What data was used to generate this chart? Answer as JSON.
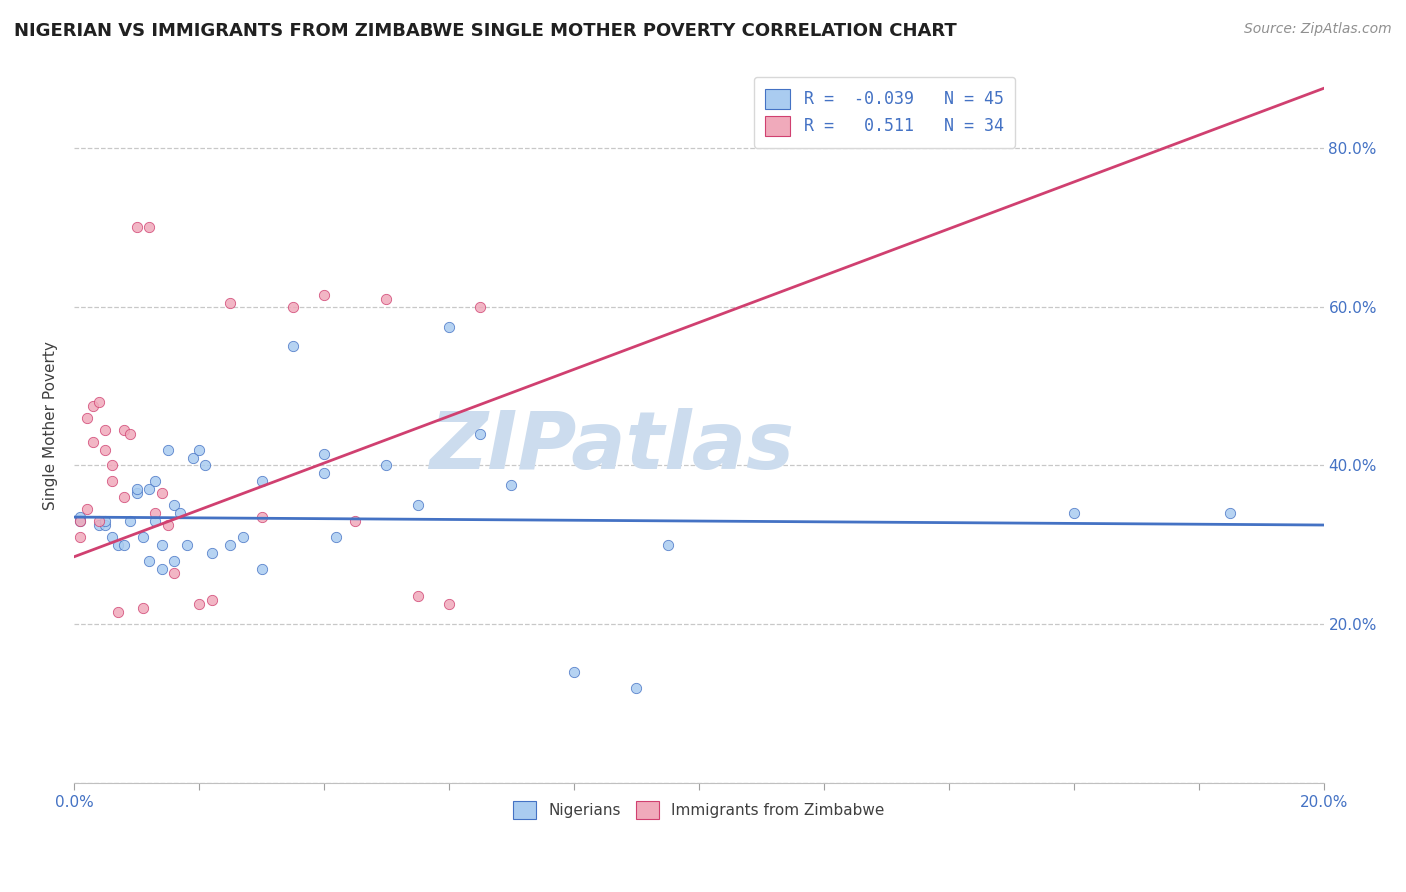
{
  "title": "NIGERIAN VS IMMIGRANTS FROM ZIMBABWE SINGLE MOTHER POVERTY CORRELATION CHART",
  "source": "Source: ZipAtlas.com",
  "xlabel": "",
  "ylabel": "Single Mother Poverty",
  "xlim": [
    0.0,
    0.2
  ],
  "ylim": [
    0.0,
    0.9
  ],
  "xticks": [
    0.0,
    0.02,
    0.04,
    0.06,
    0.08,
    0.1,
    0.12,
    0.14,
    0.16,
    0.18,
    0.2
  ],
  "yticks": [
    0.0,
    0.2,
    0.4,
    0.6,
    0.8
  ],
  "ytick_labels_right": [
    "",
    "20.0%",
    "40.0%",
    "60.0%",
    "80.0%"
  ],
  "xtick_labels": [
    "0.0%",
    "",
    "",
    "",
    "",
    "",
    "",
    "",
    "",
    "",
    "20.0%"
  ],
  "blue_R": -0.039,
  "blue_N": 45,
  "pink_R": 0.511,
  "pink_N": 34,
  "blue_color": "#aaccf0",
  "pink_color": "#f0aabb",
  "blue_line_color": "#4472c4",
  "pink_line_color": "#d04070",
  "legend_text_color": "#4472c4",
  "watermark_text": "ZIPatlas",
  "watermark_color": "#ccdcee",
  "blue_line_x0": 0.0,
  "blue_line_y0": 0.335,
  "blue_line_x1": 0.2,
  "blue_line_y1": 0.325,
  "pink_line_x0": 0.0,
  "pink_line_y0": 0.285,
  "pink_line_x1": 0.2,
  "pink_line_y1": 0.875,
  "blue_dots_x": [
    0.001,
    0.001,
    0.004,
    0.005,
    0.005,
    0.006,
    0.007,
    0.008,
    0.009,
    0.01,
    0.01,
    0.011,
    0.012,
    0.012,
    0.013,
    0.013,
    0.014,
    0.014,
    0.015,
    0.016,
    0.016,
    0.017,
    0.018,
    0.019,
    0.02,
    0.021,
    0.022,
    0.025,
    0.027,
    0.03,
    0.03,
    0.035,
    0.04,
    0.04,
    0.042,
    0.05,
    0.055,
    0.06,
    0.065,
    0.07,
    0.08,
    0.09,
    0.095,
    0.16,
    0.185
  ],
  "blue_dots_y": [
    0.335,
    0.33,
    0.325,
    0.325,
    0.33,
    0.31,
    0.3,
    0.3,
    0.33,
    0.365,
    0.37,
    0.31,
    0.37,
    0.28,
    0.38,
    0.33,
    0.27,
    0.3,
    0.42,
    0.28,
    0.35,
    0.34,
    0.3,
    0.41,
    0.42,
    0.4,
    0.29,
    0.3,
    0.31,
    0.38,
    0.27,
    0.55,
    0.415,
    0.39,
    0.31,
    0.4,
    0.35,
    0.575,
    0.44,
    0.375,
    0.14,
    0.12,
    0.3,
    0.34,
    0.34
  ],
  "pink_dots_x": [
    0.001,
    0.001,
    0.002,
    0.002,
    0.003,
    0.003,
    0.004,
    0.004,
    0.005,
    0.005,
    0.006,
    0.006,
    0.007,
    0.008,
    0.008,
    0.009,
    0.01,
    0.011,
    0.012,
    0.013,
    0.014,
    0.015,
    0.016,
    0.02,
    0.022,
    0.025,
    0.03,
    0.035,
    0.04,
    0.045,
    0.05,
    0.055,
    0.06,
    0.065
  ],
  "pink_dots_y": [
    0.33,
    0.31,
    0.345,
    0.46,
    0.43,
    0.475,
    0.48,
    0.33,
    0.42,
    0.445,
    0.4,
    0.38,
    0.215,
    0.445,
    0.36,
    0.44,
    0.7,
    0.22,
    0.7,
    0.34,
    0.365,
    0.325,
    0.265,
    0.225,
    0.23,
    0.605,
    0.335,
    0.6,
    0.615,
    0.33,
    0.61,
    0.235,
    0.225,
    0.6
  ]
}
